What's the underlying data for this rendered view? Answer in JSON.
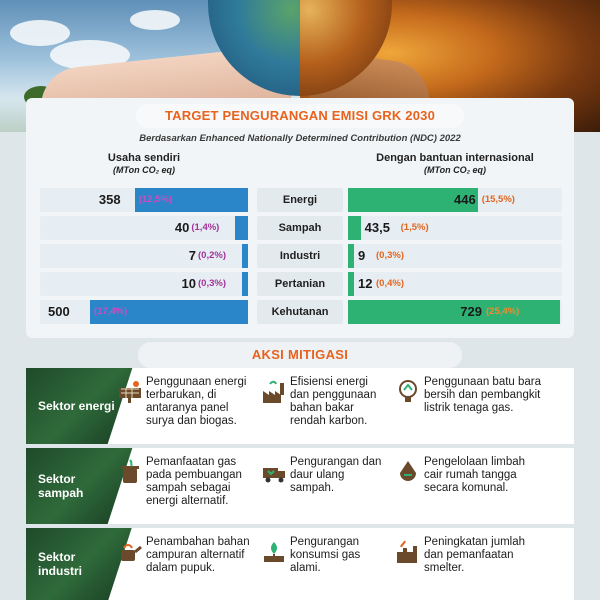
{
  "title": "TARGET PENGURANGAN EMISI GRK 2030",
  "subtitle": "Berdasarkan Enhanced Nationally Determined Contribution (NDC) 2022",
  "columns": {
    "left": {
      "title": "Usaha sendiri",
      "unit": "(MTon CO₂ eq)"
    },
    "right": {
      "title": "Dengan bantuan internasional",
      "unit": "(MTon CO₂ eq)"
    }
  },
  "chart_data": {
    "type": "bar",
    "categories": [
      "Energi",
      "Sampah",
      "Industri",
      "Pertanian",
      "Kehutanan"
    ],
    "series": [
      {
        "name": "Usaha sendiri",
        "values": [
          358,
          40,
          7,
          10,
          500
        ],
        "labels": [
          "358",
          "40",
          "7",
          "10",
          "500"
        ],
        "percents": [
          "(12,5%)",
          "(1,4%)",
          "(0,2%)",
          "(0,3%)",
          "(17,4%)"
        ]
      },
      {
        "name": "Dengan bantuan internasional",
        "values": [
          446,
          43.5,
          9,
          12,
          729
        ],
        "labels": [
          "446",
          "43,5",
          "9",
          "12",
          "729"
        ],
        "percents": [
          "(15,5%)",
          "(1,5%)",
          "(0,3%)",
          "(0,4%)",
          "(25,4%)"
        ]
      }
    ]
  },
  "colors": {
    "blue": "#2b85c9",
    "green": "#2eb274",
    "orange": "#e8631e",
    "magenta": "#a2319a"
  },
  "aksi": {
    "title": "AKSI MITIGASI",
    "sectors": [
      {
        "label": "Sektor energi",
        "items": [
          {
            "icon": "solar-panel-icon",
            "text": "Penggunaan energi terbarukan, di antaranya panel surya dan biogas."
          },
          {
            "icon": "factory-icon",
            "text": "Efisiensi energi dan penggunaan bahan bakar rendah karbon."
          },
          {
            "icon": "recycle-bulb-icon",
            "text": "Penggunaan batu bara bersih dan pembangkit listrik tenaga gas."
          }
        ]
      },
      {
        "label": "Sektor sampah",
        "items": [
          {
            "icon": "gas-bin-icon",
            "text": "Pemanfaatan gas pada pembuangan sampah sebagai energi alternatif."
          },
          {
            "icon": "recycle-truck-icon",
            "text": "Pengurangan dan daur ulang sampah."
          },
          {
            "icon": "wastewater-icon",
            "text": "Pengelolaan limbah cair rumah tangga secara komunal."
          }
        ]
      },
      {
        "label": "Sektor industri",
        "items": [
          {
            "icon": "watering-can-icon",
            "text": "Penambahan bahan campuran alternatif dalam pupuk."
          },
          {
            "icon": "gas-plant-icon",
            "text": "Pengurangan konsumsi gas alami."
          },
          {
            "icon": "smelter-icon",
            "text": "Peningkatan jumlah dan pemanfaatan smelter."
          }
        ]
      }
    ]
  }
}
